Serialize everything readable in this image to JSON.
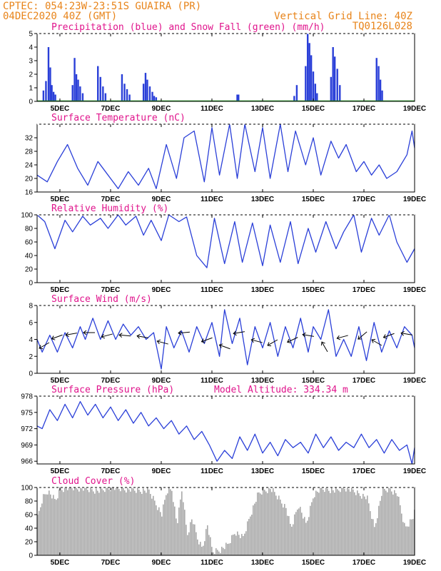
{
  "header": {
    "line1": "CPTEC:   054:23W-23:51S   GUAIRA (PR)",
    "line2": "04DEC2020 40Z (GMT)",
    "grid_note": "Vertical Grid Line: 40Z",
    "code": "TQ0126L028"
  },
  "colors": {
    "header": "#e8841a",
    "title": "#e0148c",
    "line": "#2a3fd8",
    "bar": "#2a3fd8",
    "snow": "#20a020",
    "cloud": "#a8a8a8"
  },
  "x_ticks": [
    "5DEC",
    "7DEC",
    "9DEC",
    "11DEC",
    "13DEC",
    "15DEC",
    "17DEC",
    "19DEC"
  ],
  "chart_data": [
    {
      "id": "precip",
      "type": "bar",
      "title": "Precipitation (blue) and Snow Fall (green) (mm/h)",
      "ylim": [
        0,
        5
      ],
      "yticks": [
        "0",
        "1",
        "2",
        "3",
        "4",
        "5"
      ],
      "xlim_days": [
        4.1,
        19.0
      ],
      "x": [
        4.35,
        4.45,
        4.55,
        4.62,
        4.68,
        4.75,
        4.82,
        5.5,
        5.58,
        5.65,
        5.72,
        5.8,
        5.9,
        6.5,
        6.6,
        6.7,
        6.8,
        7.45,
        7.55,
        7.65,
        7.75,
        8.3,
        8.38,
        8.45,
        8.55,
        8.65,
        8.72,
        8.8,
        12.0,
        12.05,
        14.25,
        14.35,
        14.7,
        14.78,
        14.85,
        14.92,
        15.0,
        15.08,
        15.15,
        15.7,
        15.78,
        15.85,
        15.95,
        16.05,
        17.5,
        17.58,
        17.65,
        17.72
      ],
      "values": [
        0.8,
        1.5,
        4.0,
        2.5,
        1.2,
        0.7,
        0.5,
        1.2,
        3.2,
        2.0,
        1.6,
        1.1,
        0.6,
        2.6,
        1.8,
        1.1,
        0.6,
        2.0,
        1.3,
        0.9,
        0.5,
        1.3,
        2.1,
        1.6,
        1.1,
        0.7,
        0.4,
        0.3,
        0.5,
        0.5,
        0.4,
        1.2,
        2.6,
        5.0,
        4.3,
        3.4,
        2.2,
        1.3,
        0.6,
        1.8,
        4.0,
        3.3,
        2.4,
        1.2,
        3.2,
        2.6,
        1.6,
        0.8
      ]
    },
    {
      "id": "temperature",
      "type": "line",
      "title": "Surface Temperature (nC)",
      "ylim": [
        16,
        36
      ],
      "yticks": [
        "16",
        "20",
        "24",
        "28",
        "32"
      ],
      "ytick_values": [
        16,
        20,
        24,
        28,
        32
      ],
      "xlim_days": [
        4.1,
        19.0
      ],
      "x": [
        4.1,
        4.5,
        4.9,
        5.3,
        5.7,
        6.1,
        6.5,
        6.9,
        7.3,
        7.7,
        8.1,
        8.5,
        8.8,
        9.2,
        9.6,
        9.9,
        10.3,
        10.7,
        11.0,
        11.3,
        11.7,
        12.0,
        12.3,
        12.7,
        13.0,
        13.3,
        13.7,
        14.0,
        14.3,
        14.7,
        15.0,
        15.3,
        15.7,
        16.0,
        16.3,
        16.7,
        17.0,
        17.3,
        17.6,
        17.9,
        18.3,
        18.7,
        18.9,
        19.0
      ],
      "values": [
        21,
        19,
        25,
        30,
        23,
        18,
        25,
        21,
        17,
        22,
        18,
        23,
        17,
        30,
        20,
        32,
        34,
        19,
        35,
        21,
        36,
        20,
        36,
        22,
        35,
        20,
        36,
        22,
        34,
        24,
        32,
        21,
        31,
        26,
        30,
        22,
        25,
        21,
        24,
        20,
        22,
        27,
        34,
        29
      ]
    },
    {
      "id": "humidity",
      "type": "line",
      "title": "Relative Humidity (%)",
      "ylim": [
        0,
        100
      ],
      "yticks": [
        "0",
        "20",
        "40",
        "60",
        "80",
        "100"
      ],
      "ytick_values": [
        0,
        20,
        40,
        60,
        80,
        100
      ],
      "xlim_days": [
        4.1,
        19.0
      ],
      "x": [
        4.1,
        4.4,
        4.8,
        5.2,
        5.5,
        5.9,
        6.2,
        6.6,
        6.9,
        7.3,
        7.6,
        8.0,
        8.3,
        8.6,
        9.0,
        9.3,
        9.7,
        10.0,
        10.4,
        10.8,
        11.1,
        11.5,
        11.9,
        12.2,
        12.6,
        13.0,
        13.3,
        13.7,
        14.1,
        14.4,
        14.8,
        15.1,
        15.5,
        15.9,
        16.2,
        16.6,
        16.9,
        17.3,
        17.6,
        18.0,
        18.3,
        18.7,
        19.0
      ],
      "values": [
        100,
        90,
        50,
        92,
        75,
        98,
        85,
        95,
        80,
        100,
        85,
        98,
        70,
        92,
        62,
        100,
        90,
        97,
        40,
        22,
        95,
        28,
        90,
        30,
        88,
        25,
        85,
        30,
        90,
        28,
        80,
        45,
        90,
        50,
        75,
        100,
        45,
        95,
        70,
        100,
        60,
        30,
        50
      ]
    },
    {
      "id": "wind",
      "type": "line",
      "title": "Surface Wind (m/s)",
      "ylim": [
        0,
        8
      ],
      "yticks": [
        "0",
        "2",
        "4",
        "6",
        "8"
      ],
      "ytick_values": [
        0,
        2,
        4,
        6,
        8
      ],
      "xlim_days": [
        4.1,
        19.0
      ],
      "x": [
        4.1,
        4.3,
        4.6,
        4.9,
        5.2,
        5.5,
        5.8,
        6.0,
        6.3,
        6.6,
        6.9,
        7.2,
        7.5,
        7.8,
        8.1,
        8.4,
        8.7,
        9.0,
        9.2,
        9.5,
        9.8,
        10.1,
        10.4,
        10.7,
        11.0,
        11.3,
        11.5,
        11.8,
        12.1,
        12.4,
        12.7,
        13.0,
        13.3,
        13.6,
        13.9,
        14.2,
        14.5,
        14.8,
        15.0,
        15.3,
        15.6,
        15.9,
        16.2,
        16.5,
        16.8,
        17.1,
        17.4,
        17.7,
        18.0,
        18.3,
        18.6,
        18.9,
        19.0
      ],
      "values": [
        4,
        2.5,
        4.5,
        2.5,
        4.8,
        3,
        5.5,
        4,
        6.5,
        4,
        6.2,
        4,
        5.8,
        4.5,
        5.5,
        4,
        4.8,
        0.5,
        5.5,
        3,
        5,
        2.5,
        5.5,
        3.5,
        6,
        2,
        7.5,
        3.5,
        6.5,
        1,
        5.5,
        3,
        6,
        2,
        5.5,
        3,
        6.5,
        2.5,
        5.5,
        4,
        7.5,
        2,
        4,
        2,
        5.5,
        1.5,
        6,
        2.5,
        5,
        3,
        5.5,
        4.5,
        3
      ]
    },
    {
      "id": "pressure",
      "type": "line",
      "title": "Surface Pressure (hPa)",
      "annotation": "Model Altitude: 334.34 m",
      "ylim": [
        965.5,
        978
      ],
      "yticks": [
        "966",
        "969",
        "972",
        "975",
        "978"
      ],
      "ytick_values": [
        966,
        969,
        972,
        975,
        978
      ],
      "xlim_days": [
        4.1,
        19.0
      ],
      "x": [
        4.1,
        4.3,
        4.6,
        4.9,
        5.2,
        5.5,
        5.8,
        6.1,
        6.4,
        6.7,
        7.0,
        7.3,
        7.6,
        7.9,
        8.2,
        8.5,
        8.8,
        9.1,
        9.4,
        9.7,
        10.0,
        10.3,
        10.6,
        10.9,
        11.2,
        11.5,
        11.8,
        12.1,
        12.4,
        12.7,
        13.0,
        13.3,
        13.6,
        13.9,
        14.2,
        14.5,
        14.8,
        15.1,
        15.4,
        15.7,
        16.0,
        16.3,
        16.6,
        16.9,
        17.2,
        17.5,
        17.8,
        18.1,
        18.4,
        18.7,
        18.9,
        19.0
      ],
      "values": [
        972.5,
        972,
        975.5,
        973.5,
        976.5,
        974,
        977,
        974.5,
        976.5,
        974,
        976,
        973.5,
        975.5,
        973,
        975,
        972.5,
        974,
        972,
        973.5,
        971,
        972.5,
        970,
        971.5,
        969,
        966,
        968,
        966.5,
        970.5,
        968,
        971,
        967.5,
        969.5,
        967,
        970,
        968.5,
        969.5,
        967.5,
        971,
        968.5,
        970.5,
        968,
        969.5,
        968.5,
        971,
        968.5,
        970,
        967.5,
        970,
        968,
        969,
        965.5,
        968.5
      ]
    },
    {
      "id": "cloud",
      "type": "area",
      "title": "Cloud Cover (%)",
      "ylim": [
        0,
        100
      ],
      "yticks": [
        "0",
        "20",
        "40",
        "60",
        "80",
        "100"
      ],
      "ytick_values": [
        0,
        20,
        40,
        60,
        80,
        100
      ],
      "xlim_days": [
        4.1,
        19.0
      ],
      "x": [
        4.1,
        4.3,
        4.5,
        4.8,
        5.0,
        5.5,
        6.0,
        6.5,
        7.0,
        7.5,
        8.0,
        8.5,
        9.0,
        9.2,
        9.4,
        9.6,
        9.8,
        10.0,
        10.2,
        10.4,
        10.6,
        10.8,
        11.0,
        11.3,
        11.6,
        11.9,
        12.2,
        12.5,
        12.8,
        13.0,
        13.3,
        13.6,
        13.9,
        14.1,
        14.4,
        14.7,
        15.0,
        15.3,
        15.6,
        15.9,
        16.2,
        16.5,
        16.8,
        17.1,
        17.4,
        17.7,
        18.0,
        18.3,
        18.6,
        18.9,
        19.0
      ],
      "values": [
        55,
        85,
        95,
        80,
        98,
        100,
        98,
        95,
        100,
        98,
        96,
        95,
        60,
        95,
        97,
        45,
        98,
        30,
        55,
        25,
        10,
        45,
        5,
        8,
        15,
        35,
        25,
        60,
        90,
        95,
        98,
        85,
        70,
        40,
        75,
        45,
        90,
        98,
        97,
        95,
        100,
        96,
        90,
        85,
        40,
        95,
        98,
        90,
        40,
        55,
        65
      ]
    }
  ]
}
